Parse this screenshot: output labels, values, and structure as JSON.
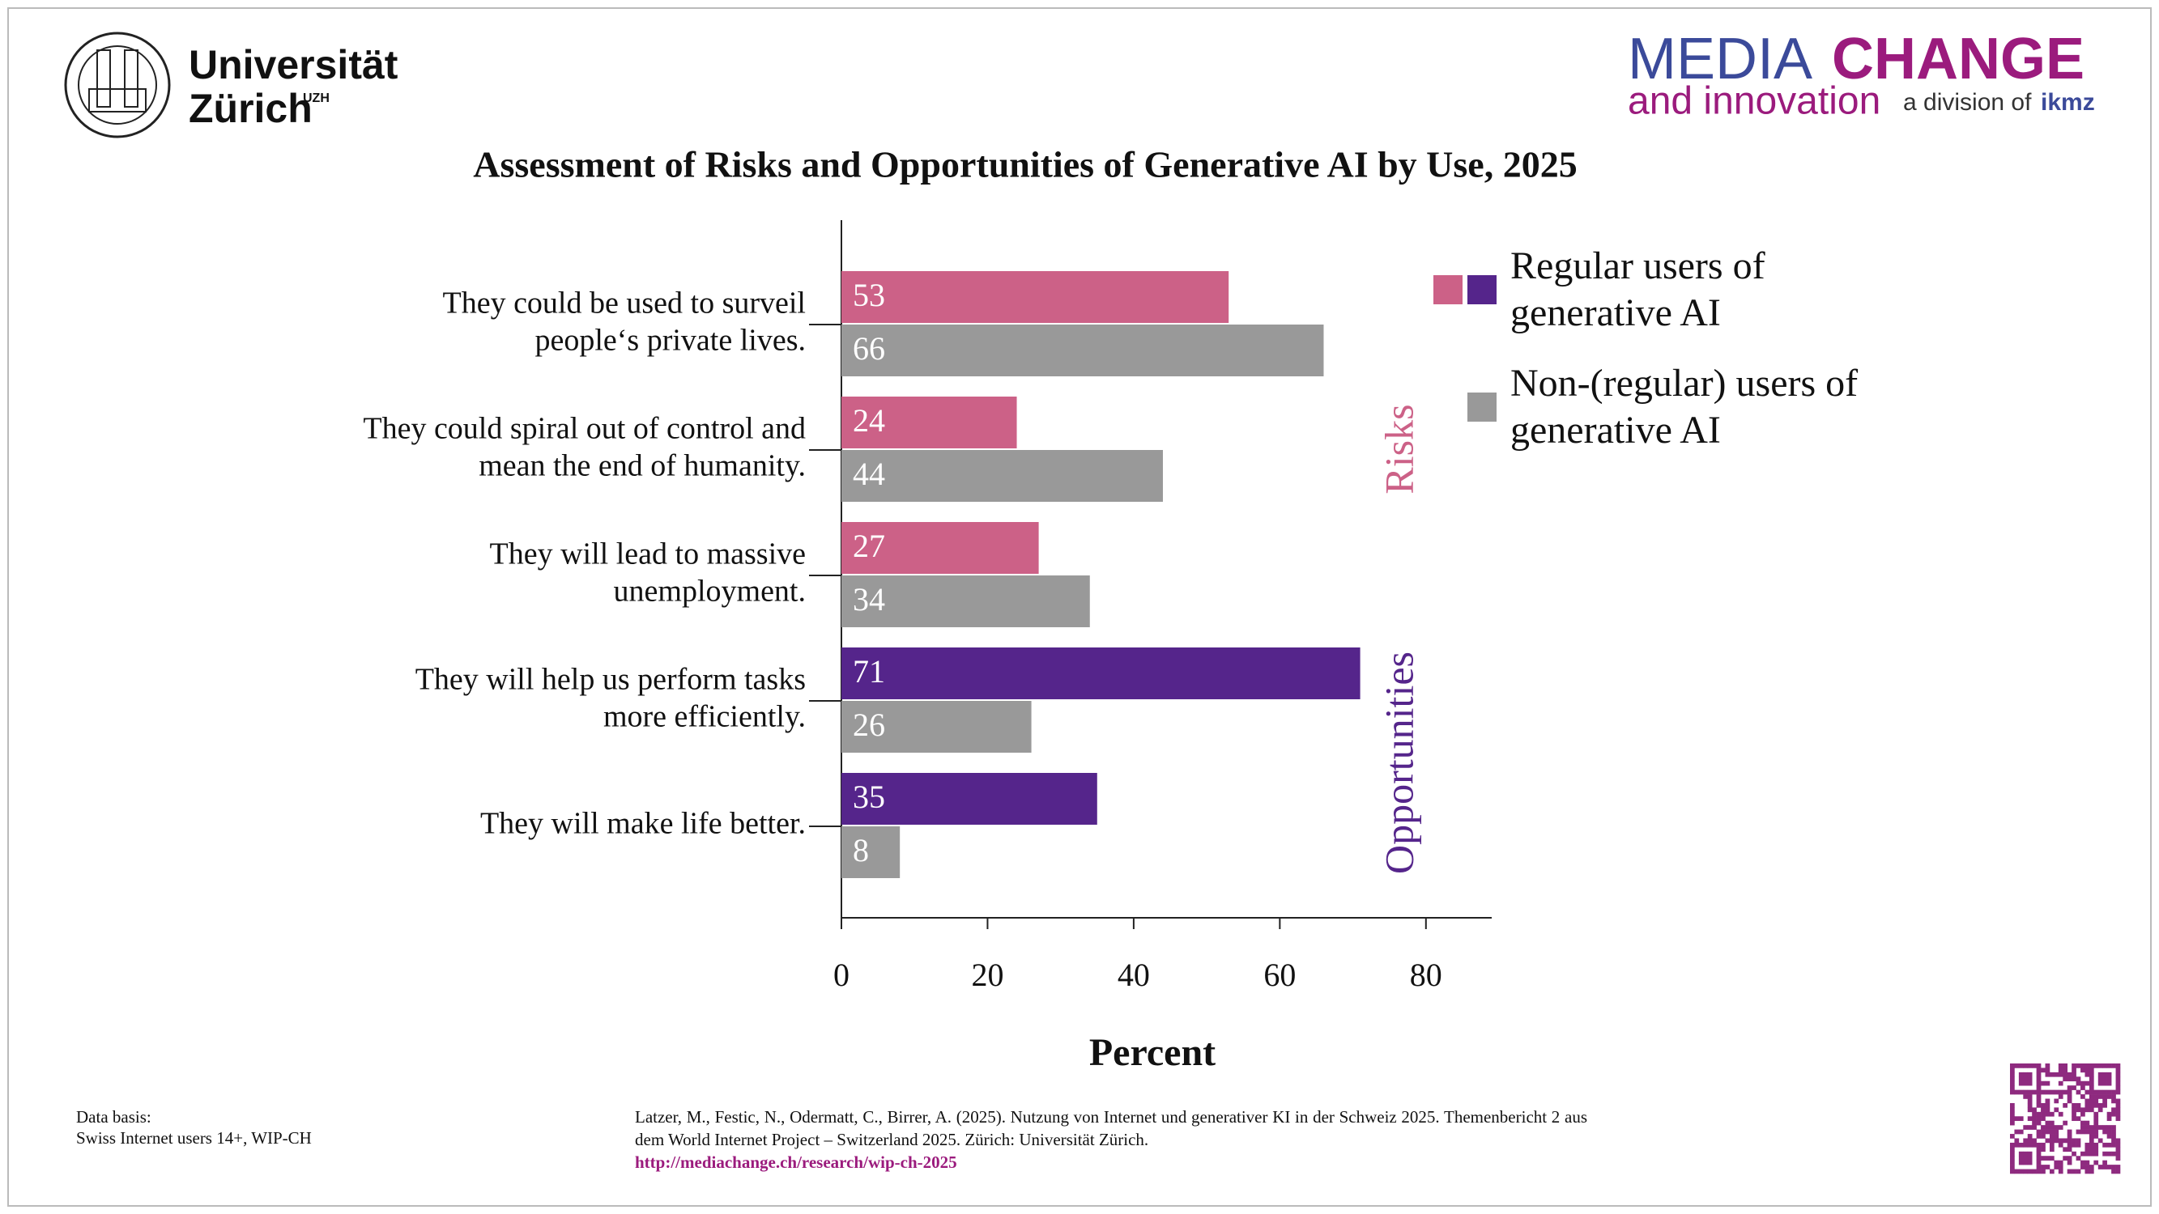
{
  "header": {
    "university": "Universität",
    "university_line2": "Zürich",
    "university_abbr": "UZH",
    "brand_part1": "MEDIA",
    "brand_part2": "CHANGE",
    "brand_line2": "and innovation",
    "division": "a division of",
    "division_name": "ikmz"
  },
  "chart_data": {
    "type": "bar",
    "orientation": "horizontal",
    "title": "Assessment of Risks and Opportunities of Generative AI by Use, 2025",
    "categories": [
      [
        "They could be used to surveil",
        "people‘s private lives."
      ],
      [
        "They could spiral out of control and",
        "mean the end of humanity."
      ],
      [
        "They will lead to massive",
        "unemployment."
      ],
      [
        "They will help us perform tasks",
        "more efficiently."
      ],
      [
        "They will make life better."
      ]
    ],
    "series": [
      {
        "name": "Regular users of generative AI",
        "colors": [
          "#cc6187",
          "#cc6187",
          "#cc6187",
          "#55258b",
          "#55258b"
        ],
        "values": [
          53,
          24,
          27,
          71,
          35
        ]
      },
      {
        "name": "Non-(regular) users of generative AI",
        "color": "#999999",
        "values": [
          66,
          44,
          34,
          26,
          8
        ]
      }
    ],
    "groups": [
      {
        "label": "Risks",
        "color": "#cc6187",
        "categories": [
          0,
          1,
          2
        ]
      },
      {
        "label": "Opportunities",
        "color": "#55258b",
        "categories": [
          3,
          4
        ]
      }
    ],
    "xlabel": "Percent",
    "xlim": [
      0,
      89
    ],
    "xticks": [
      0,
      20,
      40,
      60,
      80
    ],
    "grid": false,
    "legend": "right"
  },
  "footer": {
    "data_basis_title": "Data basis:",
    "data_basis": "Swiss Internet users 14+, WIP-CH",
    "citation": "Latzer, M., Festic, N., Odermatt, C., Birrer, A. (2025). Nutzung von Internet und generativer KI in der Schweiz 2025. Themenbericht 2 aus dem World Internet Project – Switzerland 2025. Zürich: Universität Zürich.",
    "url": "http://mediachange.ch/research/wip-ch-2025"
  }
}
